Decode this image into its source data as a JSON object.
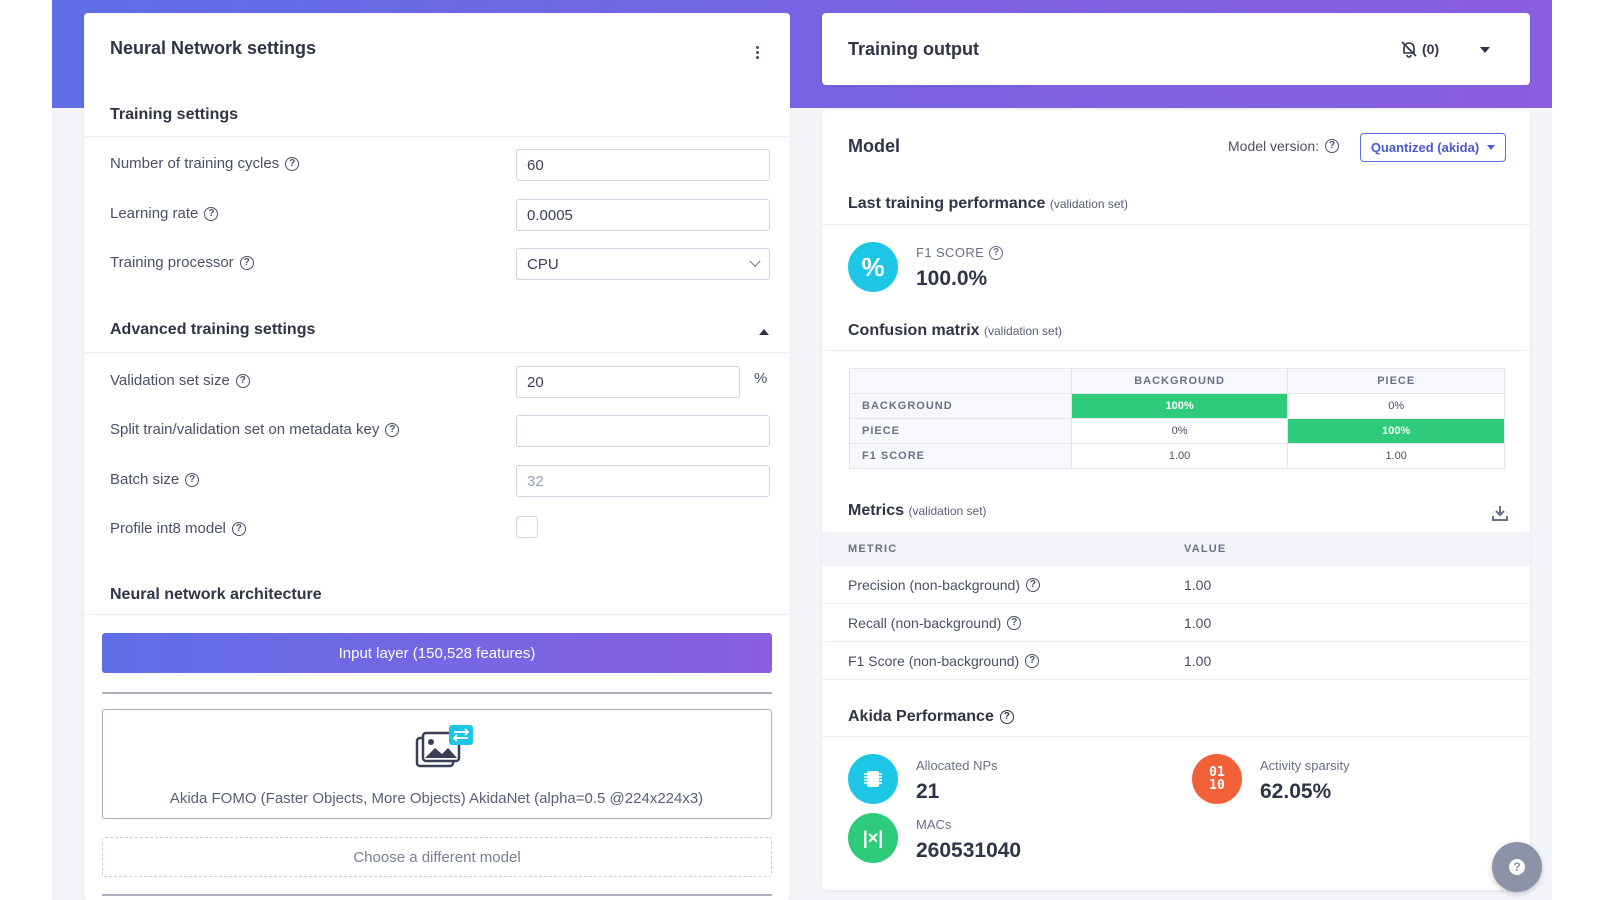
{
  "left": {
    "title": "Neural Network settings",
    "training_settings_title": "Training settings",
    "fields": {
      "cycles_label": "Number of training cycles",
      "cycles_value": "60",
      "lr_label": "Learning rate",
      "lr_value": "0.0005",
      "processor_label": "Training processor",
      "processor_value": "CPU"
    },
    "advanced_title": "Advanced training settings",
    "advanced": {
      "val_label": "Validation set size",
      "val_value": "20",
      "val_unit": "%",
      "split_label": "Split train/validation set on metadata key",
      "split_value": "",
      "batch_label": "Batch size",
      "batch_value": "32",
      "profile_label": "Profile int8 model"
    },
    "architecture_title": "Neural network architecture",
    "input_layer": "Input layer (150,528 features)",
    "model_name": "Akida FOMO (Faster Objects, More Objects) AkidaNet (alpha=0.5 @224x224x3)",
    "choose_model": "Choose a different model"
  },
  "output": {
    "title": "Training output",
    "notification_count": "(0)"
  },
  "model": {
    "title": "Model",
    "version_label": "Model version:",
    "version_value": "Quantized (akida)",
    "last_perf_title": "Last training performance",
    "validation_set": "(validation set)",
    "f1_caption": "F1 SCORE",
    "f1_value": "100.0%",
    "confusion_title": "Confusion matrix",
    "confusion": {
      "col_headers": [
        "BACKGROUND",
        "PIECE"
      ],
      "rows": [
        {
          "label": "BACKGROUND",
          "cells": [
            "100%",
            "0%"
          ]
        },
        {
          "label": "PIECE",
          "cells": [
            "0%",
            "100%"
          ]
        },
        {
          "label": "F1 SCORE",
          "cells": [
            "1.00",
            "1.00"
          ]
        }
      ]
    },
    "metrics_title": "Metrics",
    "metrics_headers": [
      "METRIC",
      "VALUE"
    ],
    "metrics": [
      {
        "name": "Precision (non-background)",
        "value": "1.00"
      },
      {
        "name": "Recall (non-background)",
        "value": "1.00"
      },
      {
        "name": "F1 Score (non-background)",
        "value": "1.00"
      }
    ],
    "akida_title": "Akida Performance",
    "akida": {
      "nps_label": "Allocated NPs",
      "nps_value": "21",
      "sparsity_label": "Activity sparsity",
      "sparsity_value": "62.05%",
      "macs_label": "MACs",
      "macs_value": "260531040",
      "sparsity_icon_text": "01 10"
    }
  },
  "colors": {
    "accent": "#5f6ee6",
    "banner_end": "#8a5fe0",
    "success": "#2ecc7a",
    "cyan": "#1ec6e6",
    "orange": "#f2603a"
  }
}
